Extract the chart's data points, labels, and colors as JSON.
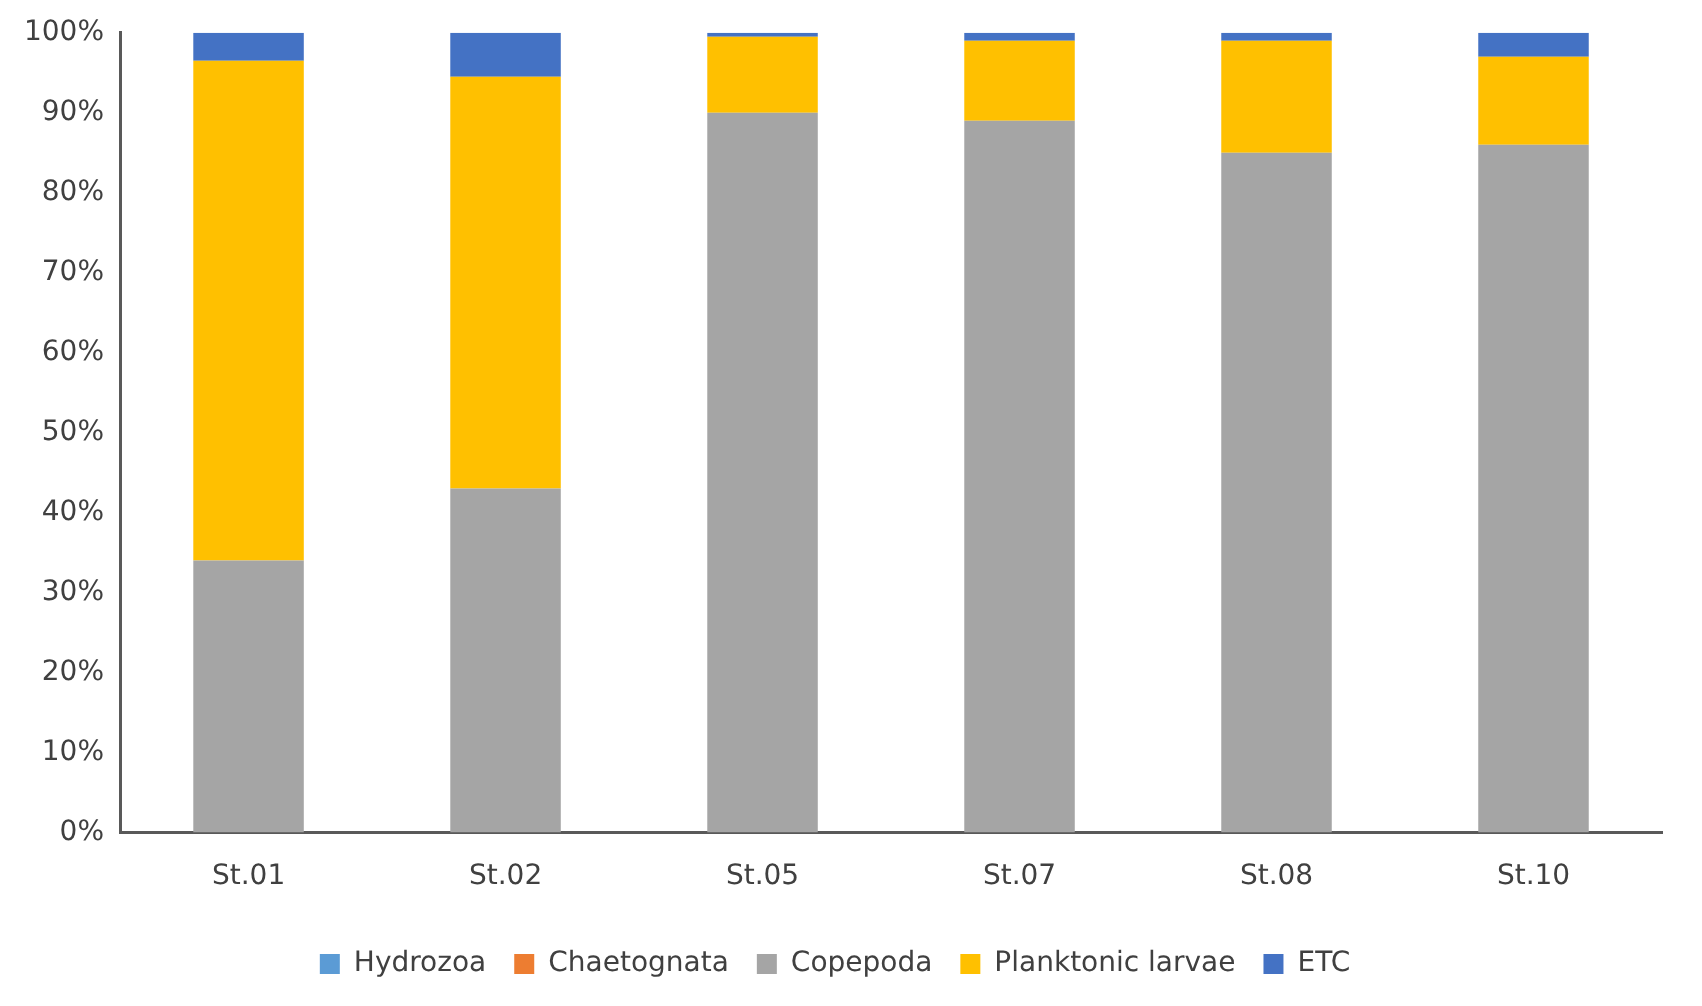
{
  "chart_data": {
    "type": "bar",
    "stacked": true,
    "categories": [
      "St.01",
      "St.02",
      "St.05",
      "St.07",
      "St.08",
      "St.10"
    ],
    "series": [
      {
        "name": "Hydrozoa",
        "color": "#5b9bd5",
        "values": [
          0,
          0,
          0,
          0,
          0,
          0
        ]
      },
      {
        "name": "Chaetognata",
        "color": "#ed7d31",
        "values": [
          0,
          0,
          0,
          0,
          0,
          0
        ]
      },
      {
        "name": "Copepoda",
        "color": "#a5a5a5",
        "values": [
          34,
          43,
          90,
          89,
          85,
          86
        ]
      },
      {
        "name": "Planktonic larvae",
        "color": "#ffc000",
        "values": [
          62.5,
          51.5,
          9.5,
          10,
          14,
          11
        ]
      },
      {
        "name": "ETC",
        "color": "#4472c4",
        "values": [
          3.5,
          5.5,
          0.5,
          1,
          1,
          3
        ]
      }
    ],
    "ylim": [
      0,
      100
    ],
    "yticks": [
      {
        "value": 0,
        "label": "0%"
      },
      {
        "value": 10,
        "label": "10%"
      },
      {
        "value": 20,
        "label": "20%"
      },
      {
        "value": 30,
        "label": "30%"
      },
      {
        "value": 40,
        "label": "40%"
      },
      {
        "value": 50,
        "label": "50%"
      },
      {
        "value": 60,
        "label": "60%"
      },
      {
        "value": 70,
        "label": "70%"
      },
      {
        "value": 80,
        "label": "80%"
      },
      {
        "value": 90,
        "label": "90%"
      },
      {
        "value": 100,
        "label": "100%"
      }
    ],
    "grid": false,
    "legend": "bottom"
  }
}
